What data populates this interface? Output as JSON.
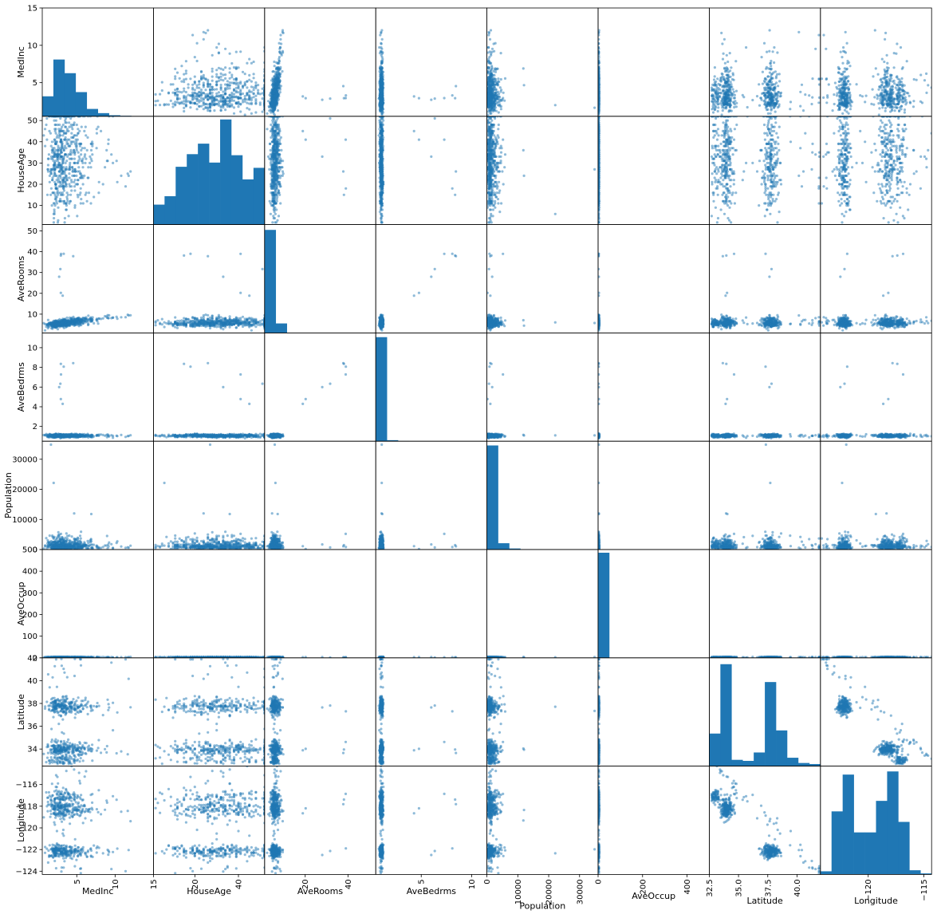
{
  "chart_data": {
    "type": "scatter-matrix",
    "variables": [
      "MedInc",
      "HouseAge",
      "AveRooms",
      "AveBedrms",
      "Population",
      "AveOccup",
      "Latitude",
      "Longitude"
    ],
    "axis_ranges": {
      "MedInc": [
        0.5,
        15.0
      ],
      "HouseAge": [
        1,
        52
      ],
      "AveRooms": [
        1.0,
        53.0
      ],
      "AveBedrms": [
        0.5,
        11.5
      ],
      "Population": [
        0,
        36000
      ],
      "AveOccup": [
        0,
        500
      ],
      "Latitude": [
        32.5,
        42.0
      ],
      "Longitude": [
        -124.3,
        -114.3
      ]
    },
    "y_ticks": {
      "MedInc": [
        "5",
        "10",
        "15"
      ],
      "HouseAge": [
        "10",
        "20",
        "30",
        "40",
        "50"
      ],
      "AveRooms": [
        "10",
        "20",
        "30",
        "40",
        "50"
      ],
      "AveBedrms": [
        "2",
        "4",
        "6",
        "8",
        "10"
      ],
      "Population": [
        "0",
        "10000",
        "20000",
        "30000"
      ],
      "AveOccup": [
        "0",
        "100",
        "200",
        "300",
        "400",
        "500"
      ],
      "Latitude": [
        "34",
        "36",
        "38",
        "40",
        "42"
      ],
      "Longitude": [
        "−124",
        "−122",
        "−120",
        "−118",
        "−116"
      ]
    },
    "x_ticks": {
      "MedInc": [
        "5",
        "10",
        "15"
      ],
      "HouseAge": [
        "20",
        "40"
      ],
      "AveRooms": [
        "20",
        "40"
      ],
      "AveBedrms": [
        "5",
        "10"
      ],
      "Population": [
        "0",
        "10000",
        "20000",
        "30000"
      ],
      "AveOccup": [
        "0",
        "200",
        "400"
      ],
      "Latitude": [
        "32.5",
        "35.0",
        "37.5",
        "40.0"
      ],
      "Longitude": [
        "−120",
        "−115"
      ]
    },
    "histograms": {
      "MedInc": [
        0.19,
        0.54,
        0.41,
        0.23,
        0.07,
        0.03,
        0.01,
        0.005,
        0.002,
        0.001
      ],
      "HouseAge": [
        0.19,
        0.27,
        0.55,
        0.67,
        0.77,
        0.59,
        1.0,
        0.66,
        0.43,
        0.54
      ],
      "AveRooms": [
        0.98,
        0.09,
        0.002,
        0.001,
        0.001,
        0.001,
        0.0,
        0.0,
        0.0,
        0.001
      ],
      "AveBedrms": [
        0.99,
        0.01,
        0.002,
        0.001,
        0.0,
        0.0,
        0.0,
        0.001,
        0.0,
        0.001
      ],
      "Population": [
        0.99,
        0.06,
        0.01,
        0.002,
        0.001,
        0.0,
        0.0,
        0.0,
        0.0,
        0.001
      ],
      "AveOccup": [
        1.0,
        0.001,
        0.0,
        0.0,
        0.0,
        0.0,
        0.0,
        0.0,
        0.0,
        0.001
      ],
      "Latitude": [
        0.31,
        0.97,
        0.06,
        0.05,
        0.13,
        0.8,
        0.34,
        0.08,
        0.03,
        0.02
      ],
      "Longitude": [
        0.03,
        0.6,
        0.95,
        0.4,
        0.4,
        0.7,
        0.98,
        0.5,
        0.04,
        0.01
      ]
    },
    "point_color": "#1f77b4",
    "grid": false,
    "legend": "none"
  }
}
